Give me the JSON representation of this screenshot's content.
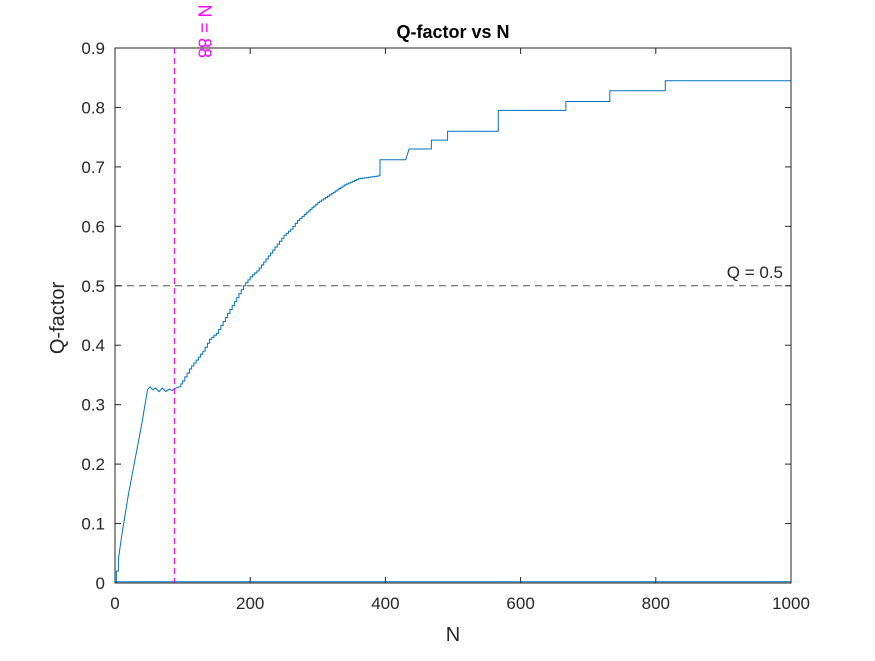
{
  "chart_data": {
    "type": "line",
    "title": "Q-factor vs N",
    "xlabel": "N",
    "ylabel": "Q-factor",
    "xlim": [
      0,
      1000
    ],
    "ylim": [
      0,
      0.9
    ],
    "xticks": [
      0,
      200,
      400,
      600,
      800,
      1000
    ],
    "yticks": [
      0,
      0.1,
      0.2,
      0.3,
      0.4,
      0.5,
      0.6,
      0.7,
      0.8,
      0.9
    ],
    "xtick_labels": [
      "0",
      "200",
      "400",
      "600",
      "800",
      "1000"
    ],
    "ytick_labels": [
      "0",
      "0.1",
      "0.2",
      "0.3",
      "0.4",
      "0.5",
      "0.6",
      "0.7",
      "0.8",
      "0.9"
    ],
    "grid": false,
    "box": true,
    "series": [
      {
        "color": "#0072BD",
        "style": "step",
        "points": [
          [
            1,
            0
          ],
          [
            2,
            0.02
          ],
          [
            5,
            0.04
          ],
          [
            10,
            0.08
          ],
          [
            20,
            0.15
          ],
          [
            30,
            0.21
          ],
          [
            40,
            0.27
          ],
          [
            48,
            0.325
          ],
          [
            52,
            0.33
          ],
          [
            56,
            0.325
          ],
          [
            60,
            0.328
          ],
          [
            65,
            0.322
          ],
          [
            70,
            0.328
          ],
          [
            75,
            0.322
          ],
          [
            80,
            0.326
          ],
          [
            85,
            0.324
          ],
          [
            90,
            0.328
          ],
          [
            95,
            0.33
          ],
          [
            100,
            0.34
          ],
          [
            110,
            0.36
          ],
          [
            120,
            0.375
          ],
          [
            130,
            0.39
          ],
          [
            140,
            0.41
          ],
          [
            150,
            0.42
          ],
          [
            160,
            0.44
          ],
          [
            170,
            0.46
          ],
          [
            180,
            0.48
          ],
          [
            190,
            0.5
          ],
          [
            200,
            0.515
          ],
          [
            210,
            0.525
          ],
          [
            220,
            0.54
          ],
          [
            230,
            0.555
          ],
          [
            240,
            0.57
          ],
          [
            250,
            0.585
          ],
          [
            260,
            0.595
          ],
          [
            270,
            0.61
          ],
          [
            280,
            0.62
          ],
          [
            300,
            0.64
          ],
          [
            320,
            0.655
          ],
          [
            340,
            0.67
          ],
          [
            360,
            0.68
          ],
          [
            390,
            0.685
          ],
          [
            392,
            0.712
          ],
          [
            430,
            0.712
          ],
          [
            435,
            0.73
          ],
          [
            465,
            0.73
          ],
          [
            468,
            0.745
          ],
          [
            490,
            0.745
          ],
          [
            492,
            0.76
          ],
          [
            565,
            0.76
          ],
          [
            567,
            0.795
          ],
          [
            665,
            0.795
          ],
          [
            667,
            0.81
          ],
          [
            730,
            0.81
          ],
          [
            732,
            0.828
          ],
          [
            812,
            0.828
          ],
          [
            814,
            0.845
          ],
          [
            1000,
            0.845
          ]
        ]
      },
      {
        "color": "#0072BD",
        "style": "line",
        "points": [
          [
            0,
            0.002
          ],
          [
            1000,
            0.002
          ]
        ]
      }
    ],
    "reference_lines": [
      {
        "orientation": "vertical",
        "x": 88,
        "color": "#FF00FF",
        "style": "dashed",
        "label": "N = 88"
      },
      {
        "orientation": "horizontal",
        "y": 0.5,
        "color": "#555555",
        "style": "dashed",
        "label": "Q = 0.5"
      }
    ]
  }
}
